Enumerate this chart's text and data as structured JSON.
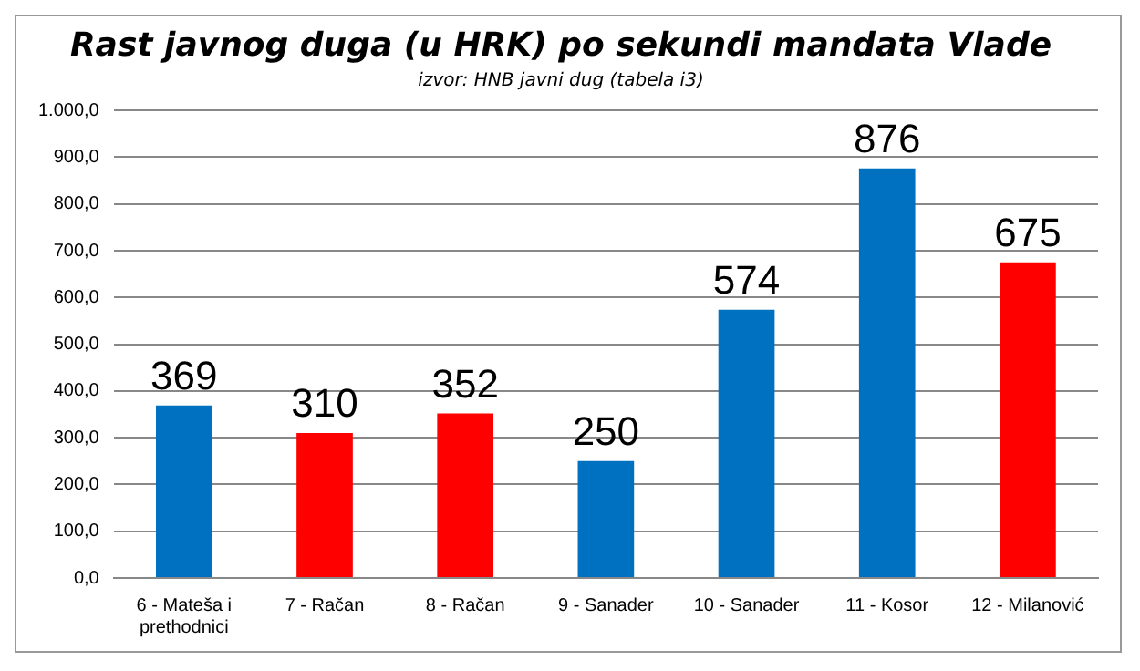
{
  "chart_data": {
    "type": "bar",
    "title": "Rast javnog duga (u HRK) po sekundi mandata Vlade",
    "subtitle": "izvor: HNB javni dug (tabela i3)",
    "categories": [
      "6 - Mateša i prethodnici",
      "7 - Račan",
      "8 - Račan",
      "9 - Sanader",
      "10 - Sanader",
      "11 - Kosor",
      "12 - Milanović"
    ],
    "values": [
      369,
      310,
      352,
      250,
      574,
      876,
      675
    ],
    "colors": [
      "#0070c0",
      "#ff0000",
      "#ff0000",
      "#0070c0",
      "#0070c0",
      "#0070c0",
      "#ff0000"
    ],
    "data_labels": true,
    "ylim": [
      0,
      1000
    ],
    "yticks": [
      {
        "value": 0,
        "label": "0,0"
      },
      {
        "value": 100,
        "label": "100,0"
      },
      {
        "value": 200,
        "label": "200,0"
      },
      {
        "value": 300,
        "label": "300,0"
      },
      {
        "value": 400,
        "label": "400,0"
      },
      {
        "value": 500,
        "label": "500,0"
      },
      {
        "value": 600,
        "label": "600,0"
      },
      {
        "value": 700,
        "label": "700,0"
      },
      {
        "value": 800,
        "label": "800,0"
      },
      {
        "value": 900,
        "label": "900,0"
      },
      {
        "value": 1000,
        "label": "1.000,0"
      }
    ],
    "grid": "y"
  }
}
